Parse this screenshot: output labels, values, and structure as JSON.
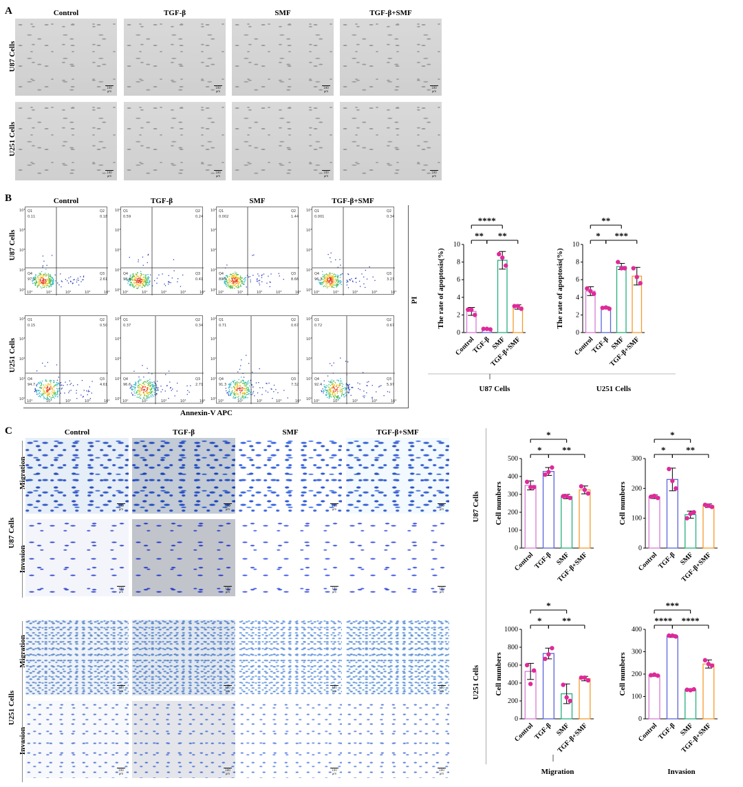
{
  "panels": {
    "a": "A",
    "b": "B",
    "c": "C"
  },
  "groups": [
    "Control",
    "TGF-β",
    "SMF",
    "TGF-β+SMF"
  ],
  "cell_lines": {
    "u87": "U87 Cells",
    "u251": "U251 Cells"
  },
  "assays": {
    "migration": "Migration",
    "invasion": "Invasion"
  },
  "scale_text": "100 µm",
  "flow": {
    "xlabel": "Annexin-V APC",
    "ylabel": "PI",
    "quadrant_labels": [
      "Q1",
      "Q2",
      "Q3",
      "Q4"
    ],
    "tick_labels": [
      "10⁰",
      "10¹",
      "10²",
      "10³",
      "10⁴"
    ],
    "u87": [
      {
        "q1": "0.11",
        "q2": "0.18",
        "q3": "2.61",
        "q4": "97.1"
      },
      {
        "q1": "0.59",
        "q2": "0.24",
        "q3": "0.41",
        "q4": "98.8"
      },
      {
        "q1": "0.002",
        "q2": "1.44",
        "q3": "8.66",
        "q4": "89.9"
      },
      {
        "q1": "0.001",
        "q2": "0.34",
        "q3": "3.23",
        "q4": "96.3"
      }
    ],
    "u251": [
      {
        "q1": "0.15",
        "q2": "0.50",
        "q3": "4.61",
        "q4": "94.7"
      },
      {
        "q1": "0.37",
        "q2": "0.34",
        "q3": "2.71",
        "q4": "96.6"
      },
      {
        "q1": "0.71",
        "q2": "0.67",
        "q3": "7.32",
        "q4": "91.3"
      },
      {
        "q1": "0.72",
        "q2": "0.67",
        "q3": "5.97",
        "q4": "92.4"
      }
    ]
  },
  "chart_data": [
    {
      "id": "apop_u87",
      "type": "bar",
      "categories": [
        "Control",
        "TGF-β",
        "SMF",
        "TGF-β+SMF"
      ],
      "values": [
        2.4,
        0.4,
        8.2,
        2.9
      ],
      "errors": [
        0.45,
        0.08,
        1.0,
        0.25
      ],
      "points": [
        [
          2.6,
          2.0,
          2.6
        ],
        [
          0.42,
          0.36,
          0.42
        ],
        [
          8.9,
          7.6,
          8.5
        ],
        [
          3.0,
          2.7,
          3.0
        ]
      ],
      "ylabel": "The rate of apoptosis(%)",
      "ylim": [
        0,
        10
      ],
      "yticks": [
        0,
        2,
        4,
        6,
        8,
        10
      ],
      "group_label": "U87 Cells",
      "sig": [
        {
          "a": 0,
          "b": 1,
          "label": "**",
          "level": 1
        },
        {
          "a": 1,
          "b": 3,
          "label": "**",
          "level": 1
        },
        {
          "a": 0,
          "b": 2,
          "label": "****",
          "level": 2
        }
      ]
    },
    {
      "id": "apop_u251",
      "type": "bar",
      "categories": [
        "Control",
        "TGF-β",
        "SMF",
        "TGF-β+SMF"
      ],
      "values": [
        4.7,
        2.8,
        7.5,
        6.4
      ],
      "errors": [
        0.5,
        0.12,
        0.35,
        1.0
      ],
      "points": [
        [
          5.0,
          4.4,
          4.7
        ],
        [
          2.8,
          2.7,
          2.85
        ],
        [
          8.0,
          7.3,
          7.3
        ],
        [
          7.3,
          5.6,
          6.3
        ]
      ],
      "ylabel": "The rate of apoptosis(%)",
      "ylim": [
        0,
        10
      ],
      "yticks": [
        0,
        2,
        4,
        6,
        8,
        10
      ],
      "group_label": "U251 Cells",
      "sig": [
        {
          "a": 0,
          "b": 1,
          "label": "*",
          "level": 1
        },
        {
          "a": 1,
          "b": 3,
          "label": "***",
          "level": 1
        },
        {
          "a": 0,
          "b": 2,
          "label": "**",
          "level": 2
        }
      ]
    },
    {
      "id": "u87_mig",
      "type": "bar",
      "categories": [
        "Control",
        "TGF-β",
        "SMF",
        "TGF-β+SMF"
      ],
      "values": [
        350,
        428,
        288,
        325
      ],
      "errors": [
        25,
        22,
        12,
        22
      ],
      "points": [
        [
          370,
          340,
          340
        ],
        [
          410,
          450,
          425
        ],
        [
          290,
          280,
          290
        ],
        [
          345,
          305,
          325
        ]
      ],
      "ylabel": "Cell numbers",
      "ylim": [
        0,
        500
      ],
      "yticks": [
        0,
        100,
        200,
        300,
        400,
        500
      ],
      "sig": [
        {
          "a": 0,
          "b": 1,
          "label": "*",
          "level": 1
        },
        {
          "a": 1,
          "b": 3,
          "label": "**",
          "level": 1
        },
        {
          "a": 0,
          "b": 2,
          "label": "*",
          "level": 2
        }
      ]
    },
    {
      "id": "u87_inv",
      "type": "bar",
      "categories": [
        "Control",
        "TGF-β",
        "SMF",
        "TGF-β+SMF"
      ],
      "values": [
        172,
        230,
        112,
        142
      ],
      "errors": [
        6,
        38,
        12,
        6
      ],
      "points": [
        [
          172,
          168,
          175
        ],
        [
          265,
          200,
          225
        ],
        [
          100,
          120,
          115
        ],
        [
          145,
          138,
          142
        ]
      ],
      "ylabel": "Cell numbers",
      "ylim": [
        0,
        300
      ],
      "yticks": [
        0,
        100,
        200,
        300
      ],
      "sig": [
        {
          "a": 0,
          "b": 1,
          "label": "*",
          "level": 1
        },
        {
          "a": 1,
          "b": 3,
          "label": "**",
          "level": 1
        },
        {
          "a": 0,
          "b": 2,
          "label": "*",
          "level": 2
        }
      ]
    },
    {
      "id": "u251_mig",
      "type": "bar",
      "categories": [
        "Control",
        "TGF-β",
        "SMF",
        "TGF-β+SMF"
      ],
      "values": [
        530,
        730,
        280,
        450
      ],
      "errors": [
        90,
        60,
        110,
        25
      ],
      "points": [
        [
          600,
          540,
          390
        ],
        [
          670,
          790,
          720
        ],
        [
          380,
          200,
          240
        ],
        [
          460,
          430,
          460
        ]
      ],
      "ylabel": "Cell numbers",
      "ylim": [
        0,
        1000
      ],
      "yticks": [
        0,
        200,
        400,
        600,
        800,
        1000
      ],
      "group_label": "Migration",
      "sig": [
        {
          "a": 0,
          "b": 1,
          "label": "*",
          "level": 1
        },
        {
          "a": 1,
          "b": 3,
          "label": "**",
          "level": 1
        },
        {
          "a": 0,
          "b": 2,
          "label": "*",
          "level": 2
        }
      ]
    },
    {
      "id": "u251_inv",
      "type": "bar",
      "categories": [
        "Control",
        "TGF-β",
        "SMF",
        "TGF-β+SMF"
      ],
      "values": [
        195,
        370,
        130,
        245
      ],
      "errors": [
        5,
        6,
        5,
        18
      ],
      "points": [
        [
          195,
          193,
          198
        ],
        [
          372,
          368,
          372
        ],
        [
          130,
          132,
          128
        ],
        [
          262,
          238,
          245
        ]
      ],
      "ylabel": "Cell numbers",
      "ylim": [
        0,
        400
      ],
      "yticks": [
        0,
        100,
        200,
        300,
        400
      ],
      "group_label": "Invasion",
      "sig": [
        {
          "a": 0,
          "b": 1,
          "label": "****",
          "level": 1
        },
        {
          "a": 1,
          "b": 3,
          "label": "****",
          "level": 1
        },
        {
          "a": 0,
          "b": 2,
          "label": "***",
          "level": 2
        }
      ]
    }
  ],
  "bar_colors": [
    "#d77ad6",
    "#5a63d8",
    "#22b07b",
    "#f59a2b"
  ],
  "point_color": "#e0299a"
}
